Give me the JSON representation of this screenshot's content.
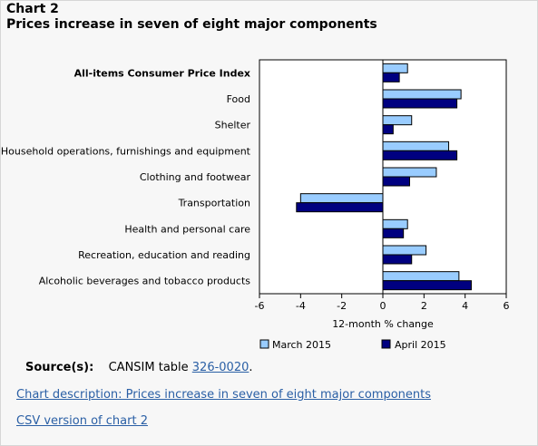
{
  "header": {
    "chart_number": "Chart 2",
    "title": "Prices increase in seven of eight major components"
  },
  "chart_data": {
    "type": "bar",
    "orientation": "horizontal",
    "categories": [
      "All-items Consumer Price Index",
      "Food",
      "Shelter",
      "Household operations, furnishings and equipment",
      "Clothing and footwear",
      "Transportation",
      "Health and personal care",
      "Recreation, education and reading",
      "Alcoholic beverages and tobacco products"
    ],
    "bold_categories": [
      "All-items Consumer Price Index"
    ],
    "series": [
      {
        "name": "March 2015",
        "color": "#99ccff",
        "values": [
          1.2,
          3.8,
          1.4,
          3.2,
          2.6,
          -4.0,
          1.2,
          2.1,
          3.7
        ]
      },
      {
        "name": "April 2015",
        "color": "#000080",
        "values": [
          0.8,
          3.6,
          0.5,
          3.6,
          1.3,
          -4.2,
          1.0,
          1.4,
          4.3
        ]
      }
    ],
    "xlabel": "12-month % change",
    "xlim": [
      -6,
      6
    ],
    "xticks": [
      "-6",
      "-4",
      "-2",
      "0",
      "2",
      "4",
      "6"
    ],
    "grid": false,
    "legend_position": "bottom"
  },
  "source": {
    "label": "Source(s):",
    "text": "CANSIM table ",
    "link": "326-0020",
    "end": "."
  },
  "links": {
    "description": "Chart description: Prices increase in seven of eight major components",
    "csv": "CSV version of chart 2"
  }
}
